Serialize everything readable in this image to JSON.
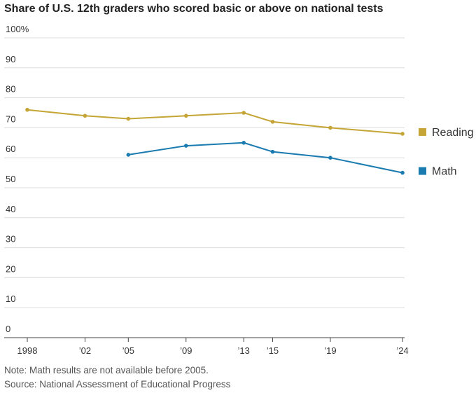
{
  "chart_data": {
    "type": "line",
    "title": "Share of U.S. 12th graders who scored basic or above on national tests",
    "x": [
      1998,
      2002,
      2005,
      2009,
      2013,
      2015,
      2019,
      2024
    ],
    "series": [
      {
        "name": "Reading",
        "color": "#c4a535",
        "values": [
          76,
          74,
          73,
          74,
          75,
          72,
          70,
          68
        ]
      },
      {
        "name": "Math",
        "color": "#1a7bb0",
        "values": [
          null,
          null,
          61,
          64,
          65,
          62,
          60,
          55
        ]
      }
    ],
    "xlim": [
      1998,
      2024
    ],
    "xticks": [
      1998,
      {
        "value": 2002,
        "label": "’02"
      },
      {
        "value": 2005,
        "label": "’05"
      },
      {
        "value": 2009,
        "label": "’09"
      },
      {
        "value": 2013,
        "label": "’13"
      },
      {
        "value": 2015,
        "label": "’15"
      },
      {
        "value": 2019,
        "label": "’19"
      },
      {
        "value": 2024,
        "label": "’24"
      }
    ],
    "ylim": [
      0,
      100
    ],
    "yticks": [
      0,
      10,
      20,
      30,
      40,
      50,
      60,
      70,
      80,
      90,
      {
        "value": 100,
        "label": "100%"
      }
    ],
    "grid": true,
    "legend": "right",
    "note": "Note: Math results are not available before 2005.",
    "source": "Source: National Assessment of Educational Progress"
  }
}
